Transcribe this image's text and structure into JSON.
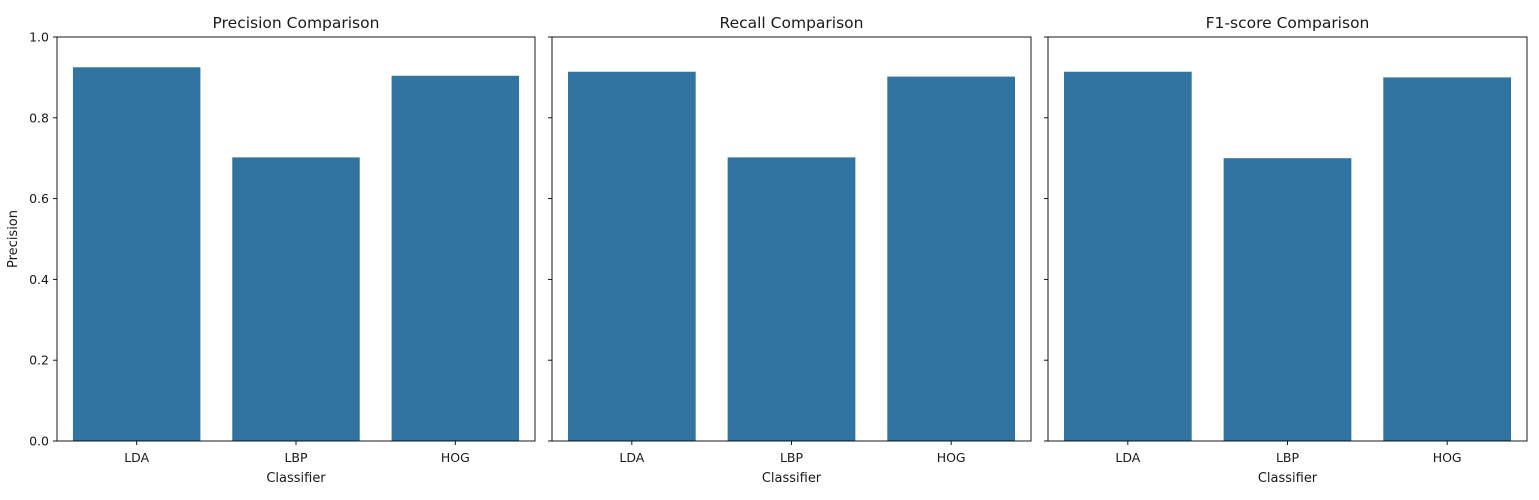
{
  "chart_data": [
    {
      "type": "bar",
      "title": "Precision Comparison",
      "xlabel": "Classifier",
      "ylabel": "Precision",
      "categories": [
        "LDA",
        "LBP",
        "HOG"
      ],
      "values": [
        0.925,
        0.702,
        0.904
      ],
      "ylim": [
        0,
        1.0
      ],
      "yticks": [
        "0.0",
        "0.2",
        "0.4",
        "0.6",
        "0.8",
        "1.0"
      ],
      "bar_color": "#3274a1",
      "grid": false
    },
    {
      "type": "bar",
      "title": "Recall Comparison",
      "xlabel": "Classifier",
      "ylabel": "",
      "categories": [
        "LDA",
        "LBP",
        "HOG"
      ],
      "values": [
        0.914,
        0.702,
        0.902
      ],
      "ylim": [
        0,
        1.0
      ],
      "bar_color": "#3274a1",
      "grid": false
    },
    {
      "type": "bar",
      "title": "F1-score Comparison",
      "xlabel": "Classifier",
      "ylabel": "",
      "categories": [
        "LDA",
        "LBP",
        "HOG"
      ],
      "values": [
        0.914,
        0.7,
        0.9
      ],
      "ylim": [
        0,
        1.0
      ],
      "bar_color": "#3274a1",
      "grid": false
    }
  ]
}
